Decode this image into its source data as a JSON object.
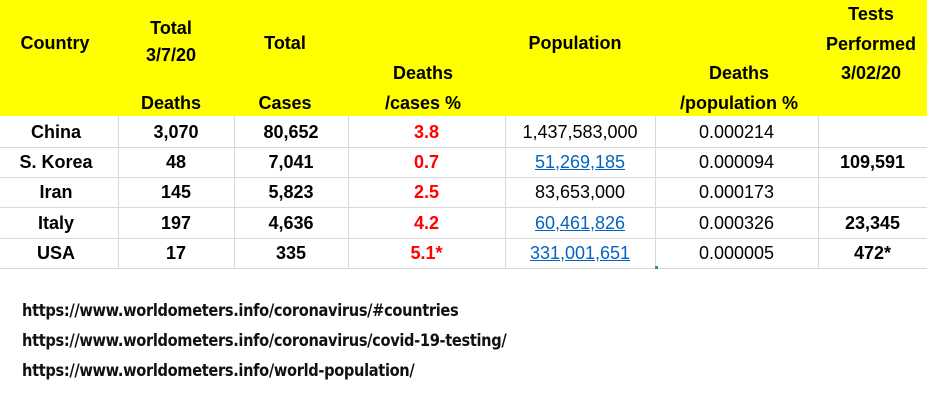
{
  "table": {
    "headers": {
      "country": "Country",
      "deaths_line1": "Total",
      "deaths_line2": "3/7/20",
      "deaths_line3": "Deaths",
      "cases_line1": "Total",
      "cases_line2": "Cases",
      "cfr_line1": "Deaths",
      "cfr_line2": "/cases %",
      "population": "Population",
      "dpp_line1": "Deaths",
      "dpp_line2": "/population %",
      "tests_line1": "Tests",
      "tests_line2": "Performed",
      "tests_line3": "3/02/20"
    },
    "rows": [
      {
        "country": "China",
        "deaths": "3,070",
        "cases": "80,652",
        "cfr": "3.8",
        "population": "1,437,583,000",
        "population_link": false,
        "dpp": "0.000214",
        "tests": ""
      },
      {
        "country": "S. Korea",
        "deaths": "48",
        "cases": "7,041",
        "cfr": "0.7",
        "population": "51,269,185",
        "population_link": true,
        "dpp": "0.000094",
        "tests": "109,591"
      },
      {
        "country": "Iran",
        "deaths": "145",
        "cases": "5,823",
        "cfr": "2.5",
        "population": "83,653,000",
        "population_link": false,
        "dpp": "0.000173",
        "tests": ""
      },
      {
        "country": "Italy",
        "deaths": "197",
        "cases": "4,636",
        "cfr": "4.2",
        "population": "60,461,826",
        "population_link": true,
        "dpp": "0.000326",
        "tests": "23,345"
      },
      {
        "country": "USA",
        "deaths": "17",
        "cases": "335",
        "cfr": "5.1*",
        "population": "331,001,651",
        "population_link": true,
        "dpp": "0.000005",
        "tests": "472*"
      }
    ]
  },
  "sources": [
    "https://www.worldometers.info/coronavirus/#countries",
    "https://www.worldometers.info/coronavirus/covid-19-testing/",
    "https://www.worldometers.info/world-population/"
  ],
  "colors": {
    "header_bg": "#ffff00",
    "cfr_text": "#ff0000",
    "link_text": "#0563c1",
    "gridline": "#d9d9d9"
  }
}
